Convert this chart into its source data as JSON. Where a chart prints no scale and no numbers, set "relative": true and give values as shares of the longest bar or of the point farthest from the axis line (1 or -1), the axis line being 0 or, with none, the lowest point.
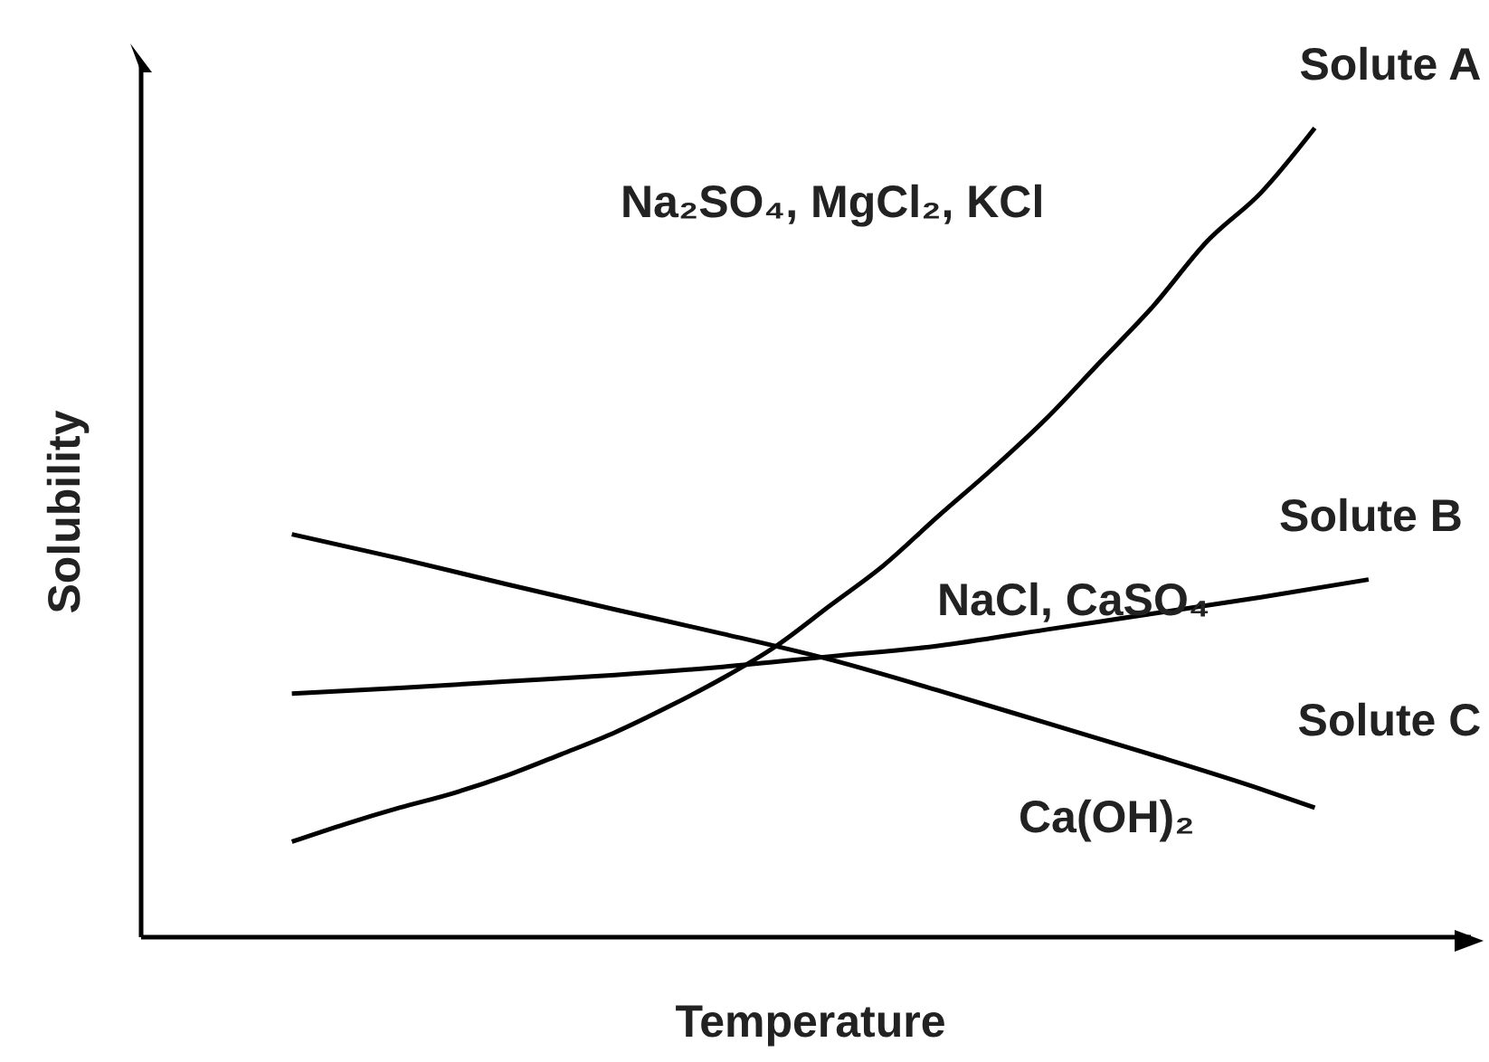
{
  "chart_data": {
    "type": "line",
    "relative": true,
    "xlabel": "Temperature",
    "ylabel": "Solubility",
    "categories": [
      null,
      null,
      null,
      null,
      null,
      null,
      null,
      null,
      null,
      null,
      null,
      null,
      null,
      null,
      null,
      null,
      null,
      null,
      null,
      null,
      null
    ],
    "series": [
      {
        "name": "Solute A",
        "color": "#000000",
        "values": [
          0.118,
          0.14,
          0.16,
          0.178,
          0.2,
          0.226,
          0.253,
          0.285,
          0.32,
          0.36,
          0.41,
          0.46,
          0.52,
          0.578,
          0.64,
          0.71,
          0.78,
          0.86,
          0.92,
          1,
          null
        ]
      },
      {
        "name": "Solute B",
        "color": "#000000",
        "values": [
          0.301,
          null,
          0.308,
          null,
          0.316,
          null,
          0.324,
          null,
          0.334,
          null,
          0.347,
          null,
          0.36,
          null,
          0.38,
          null,
          0.4,
          null,
          0.42,
          null,
          0.442
        ]
      },
      {
        "name": "Solute C",
        "color": "#000000",
        "values": [
          0.498,
          null,
          0.468,
          null,
          0.436,
          null,
          0.405,
          null,
          0.375,
          null,
          0.343,
          null,
          0.305,
          null,
          0.265,
          null,
          0.225,
          null,
          0.183,
          0.16,
          null
        ]
      }
    ],
    "annotations": [
      "Na₂SO₄, MgCl₂, KCl",
      "NaCl, CaSO₄",
      "Ca(OH)₂"
    ]
  }
}
